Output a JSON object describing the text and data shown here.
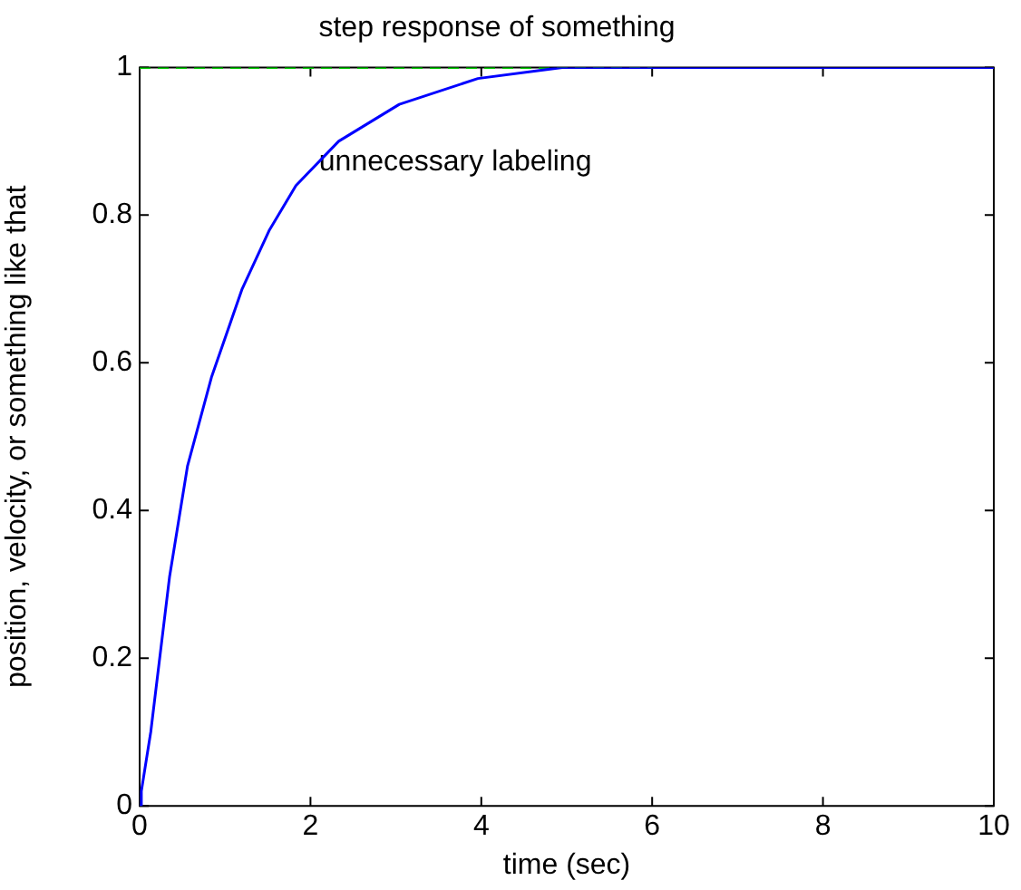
{
  "chart_data": {
    "type": "line",
    "title": "step response of something",
    "xlabel": "time (sec)",
    "ylabel": "position, velocity, or something like that",
    "xlim": [
      0,
      10
    ],
    "xticks": [
      0,
      2,
      4,
      6,
      8,
      10
    ],
    "ylim": [
      0,
      1
    ],
    "yticks": [
      0,
      0.2,
      0.4,
      0.6,
      0.8,
      1
    ],
    "grid": false,
    "legend": false,
    "marker": "none",
    "series": [
      {
        "color": "#0000ff",
        "line_style": "solid",
        "x": [
          0,
          0.02,
          0.13,
          0.35,
          0.56,
          0.84,
          1.2,
          1.52,
          1.83,
          2.33,
          3.04,
          3.96,
          4.95,
          6,
          8,
          10
        ],
        "values": [
          0,
          0.02,
          0.1,
          0.31,
          0.46,
          0.58,
          0.7,
          0.78,
          0.84,
          0.9,
          0.95,
          0.985,
          1,
          1,
          1,
          1
        ]
      },
      {
        "color": "#00cc00",
        "line_style": "dashed",
        "x": [
          0,
          6
        ],
        "values": [
          1,
          1
        ]
      }
    ],
    "annotations": [
      {
        "text": "unnecessary labeling",
        "x": 2.1,
        "y": 0.86
      }
    ]
  }
}
